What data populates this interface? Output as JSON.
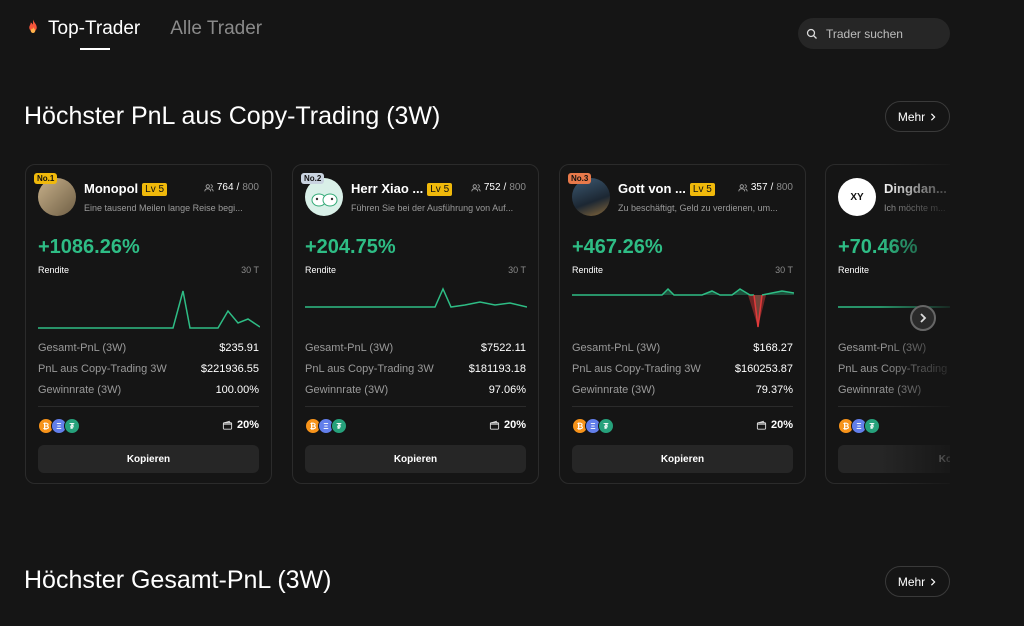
{
  "tabs": {
    "top_trader": "Top-Trader",
    "all_traders": "Alle Trader"
  },
  "search": {
    "placeholder": "Trader suchen"
  },
  "sections": [
    {
      "title": "Höchster PnL aus Copy-Trading (3W)",
      "more": "Mehr"
    },
    {
      "title": "Höchster Gesamt-PnL (3W)",
      "more": "Mehr"
    }
  ],
  "labels": {
    "roi": "Rendite",
    "period": "30 T",
    "total_pnl": "Gesamt-PnL (3W)",
    "copy_pnl": "PnL aus Copy-Trading 3W",
    "win_rate": "Gewinnrate (3W)",
    "copy_button": "Kopieren"
  },
  "traders": [
    {
      "rank": "No.1",
      "name": "Monopol",
      "level": "Lv 5",
      "followers": "764",
      "max_followers": "800",
      "description": "Eine tausend Meilen lange Reise begi...",
      "roi": "+1086.26%",
      "total_pnl": "$235.91",
      "copy_pnl": "$221936.55",
      "win_rate": "100.00%",
      "profit_share": "20%"
    },
    {
      "rank": "No.2",
      "name": "Herr Xiao ...",
      "level": "Lv 5",
      "followers": "752",
      "max_followers": "800",
      "description": "Führen Sie bei der Ausführung von Auf...",
      "roi": "+204.75%",
      "total_pnl": "$7522.11",
      "copy_pnl": "$181193.18",
      "win_rate": "97.06%",
      "profit_share": "20%"
    },
    {
      "rank": "No.3",
      "name": "Gott von ...",
      "level": "Lv 5",
      "followers": "357",
      "max_followers": "800",
      "description": "Zu beschäftigt, Geld zu verdienen, um...",
      "roi": "+467.26%",
      "total_pnl": "$168.27",
      "copy_pnl": "$160253.87",
      "win_rate": "79.37%",
      "profit_share": "20%"
    },
    {
      "rank": "",
      "name": "Dingdan...",
      "level": "",
      "followers": "",
      "max_followers": "",
      "description": "Ich möchte m...",
      "roi": "+70.46%",
      "total_pnl": "",
      "copy_pnl": "",
      "win_rate": "",
      "profit_share": "",
      "copy_button_partial": "Kop"
    }
  ],
  "colors": {
    "positive": "#2ebd85",
    "negative": "#e03a3a",
    "level_badge": "#f0b90b"
  }
}
